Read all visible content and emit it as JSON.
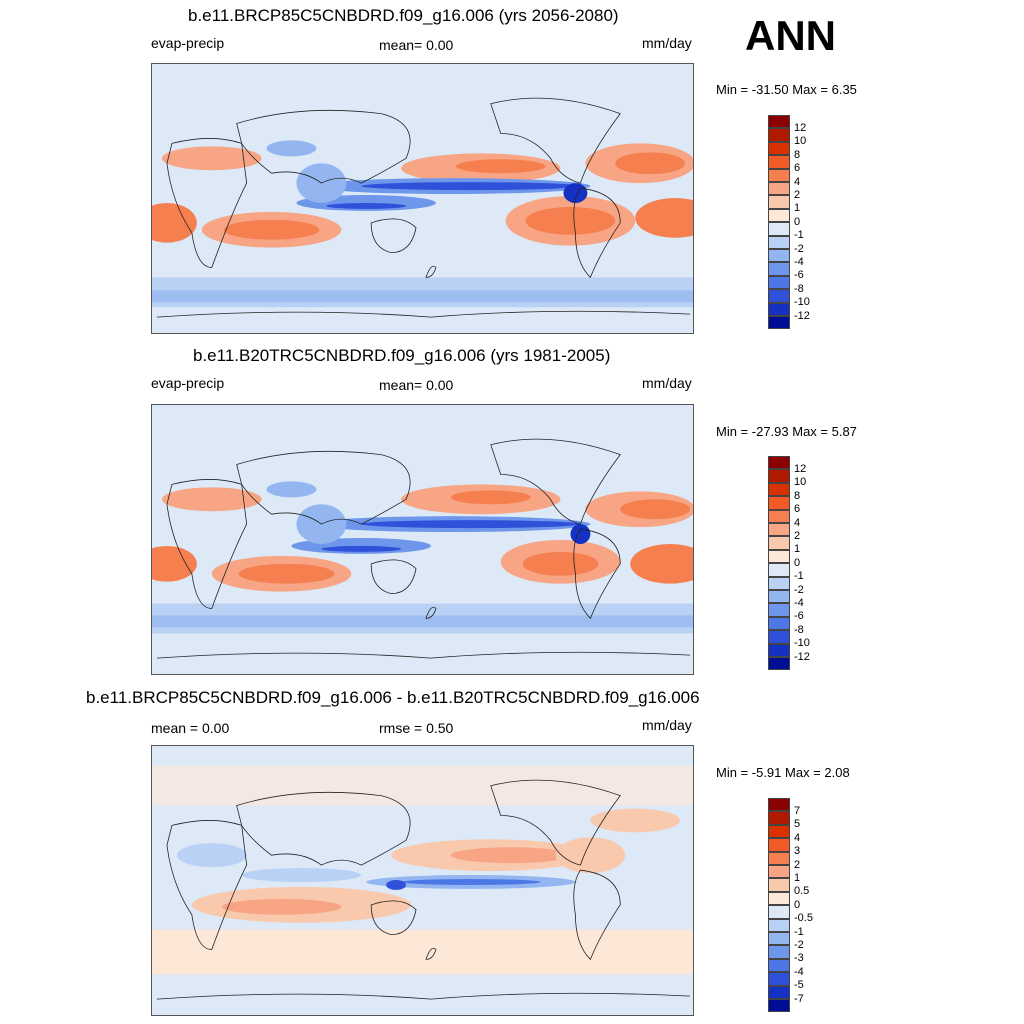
{
  "season": "ANN",
  "units": "mm/day",
  "panels": [
    {
      "title": "b.e11.BRCP85C5CNBDRD.f09_g16.006 (yrs 2056-2080)",
      "left_label": "evap-precip",
      "center_label": "mean=   0.00",
      "right_label": "mm/day",
      "minmax": "Min = -31.50 Max =   6.35"
    },
    {
      "title": "b.e11.B20TRC5CNBDRD.f09_g16.006 (yrs 1981-2005)",
      "left_label": "evap-precip",
      "center_label": "mean=   0.00",
      "right_label": "mm/day",
      "minmax": "Min = -27.93 Max =   5.87"
    },
    {
      "title": "b.e11.BRCP85C5CNBDRD.f09_g16.006 - b.e11.B20TRC5CNBDRD.f09_g16.006",
      "left_label": "mean =   0.00",
      "center_label": "rmse =   0.50",
      "right_label": "mm/day",
      "minmax": "Min =  -5.91 Max =   2.08"
    }
  ],
  "colorbar_main": {
    "labels": [
      "12",
      "10",
      "8",
      "6",
      "4",
      "2",
      "1",
      "0",
      "-1",
      "-2",
      "-4",
      "-6",
      "-8",
      "-10",
      "-12"
    ],
    "colors": [
      "#8b0000",
      "#b21a00",
      "#d93200",
      "#f25a28",
      "#f57f4f",
      "#f7a584",
      "#f9c9ad",
      "#fde8d8",
      "#dde9f7",
      "#b8d1f5",
      "#93b6f1",
      "#6e97ec",
      "#4d77e6",
      "#2f50d9",
      "#1431c4",
      "#000e96"
    ]
  },
  "colorbar_diff": {
    "labels": [
      "7",
      "5",
      "4",
      "3",
      "2",
      "1",
      "0.5",
      "0",
      "-0.5",
      "-1",
      "-2",
      "-3",
      "-4",
      "-5",
      "-7"
    ],
    "colors": [
      "#8b0000",
      "#b21a00",
      "#d93200",
      "#f25a28",
      "#f57f4f",
      "#f7a584",
      "#f9c9ad",
      "#fde8d8",
      "#dde9f7",
      "#b8d1f5",
      "#93b6f1",
      "#6e97ec",
      "#4d77e6",
      "#2f50d9",
      "#1431c4",
      "#000e96"
    ]
  }
}
